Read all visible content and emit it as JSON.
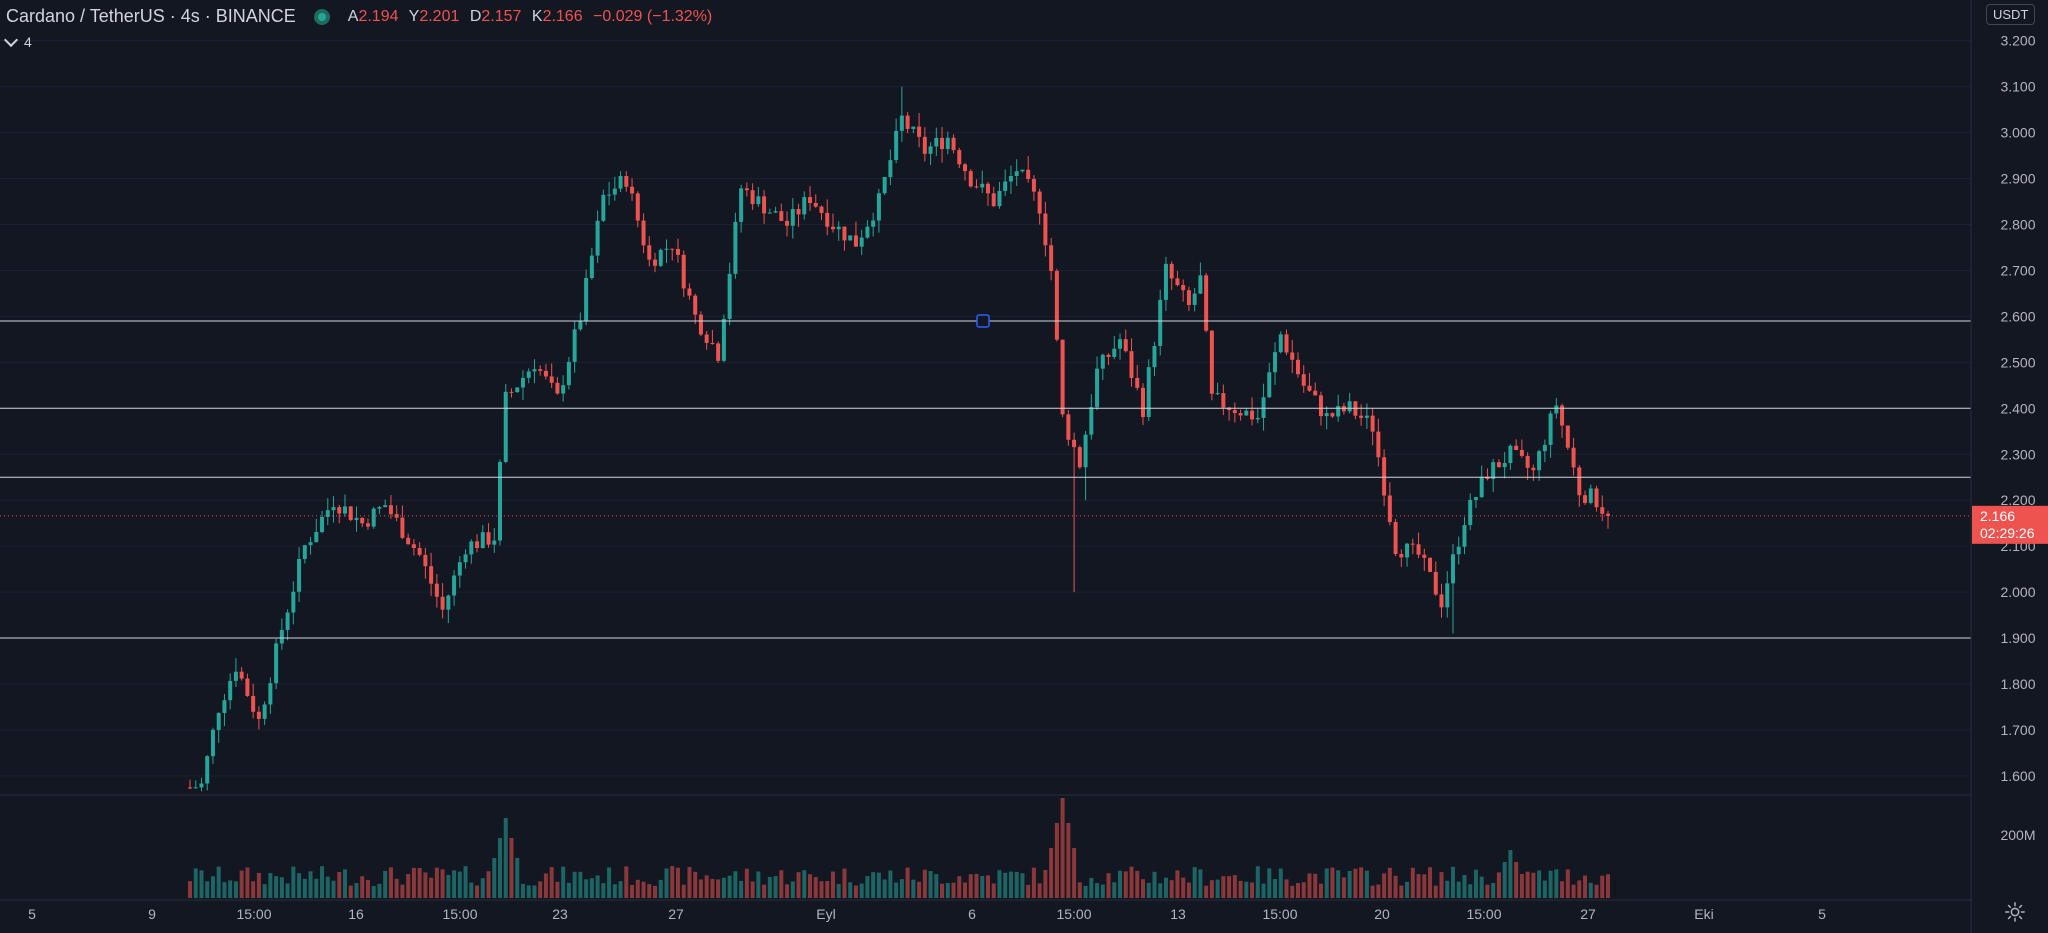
{
  "header": {
    "title": "Cardano / TetherUS · 4s · BINANCE",
    "ohlc": [
      {
        "key": "A",
        "val": "2.194"
      },
      {
        "key": "Y",
        "val": "2.201"
      },
      {
        "key": "D",
        "val": "2.157"
      },
      {
        "key": "K",
        "val": "2.166"
      }
    ],
    "change": "−0.029 (−1.32%)"
  },
  "volume_indicator_label": "4",
  "currency_button": "USDT",
  "colors": {
    "background": "#131722",
    "up": "#26a69a",
    "down": "#ef5350",
    "axis_text": "#b2b5be",
    "hline": "#d1d4dc"
  },
  "icons": [
    "status-dot-icon",
    "chevron-down-icon",
    "gear-icon"
  ],
  "chart_data": {
    "type": "candlestick",
    "title": "Cardano / TetherUS",
    "interval": "4s",
    "exchange": "BINANCE",
    "y_ticks": [
      "3.200",
      "3.100",
      "3.000",
      "2.900",
      "2.800",
      "2.700",
      "2.600",
      "2.500",
      "2.400",
      "2.300",
      "2.200",
      "2.100",
      "2.000",
      "1.900",
      "1.800",
      "1.700",
      "1.600"
    ],
    "ylim": [
      1.565,
      3.245
    ],
    "x_ticks": [
      "5",
      "9",
      "15:00",
      "16",
      "15:00",
      "23",
      "27",
      "Eyl",
      "6",
      "15:00",
      "13",
      "15:00",
      "20",
      "15:00",
      "27",
      "Eki",
      "5"
    ],
    "volume_tick": "200M",
    "horizontal_lines": [
      {
        "value": 2.59,
        "label": "2.590"
      },
      {
        "value": 2.4,
        "label": "2.400"
      },
      {
        "value": 2.25,
        "label": "2.250"
      },
      {
        "value": 1.9,
        "label": "1.900"
      }
    ],
    "last_price": {
      "value": 2.166,
      "label": "2.166",
      "countdown": "02:29:26"
    },
    "approx_close_path": [
      {
        "t": 0,
        "c": 1.575
      },
      {
        "t": 2,
        "c": 1.58
      },
      {
        "t": 5,
        "c": 1.75
      },
      {
        "t": 8,
        "c": 1.84
      },
      {
        "t": 12,
        "c": 1.72
      },
      {
        "t": 16,
        "c": 1.92
      },
      {
        "t": 20,
        "c": 2.1
      },
      {
        "t": 25,
        "c": 2.2
      },
      {
        "t": 30,
        "c": 2.15
      },
      {
        "t": 34,
        "c": 2.19
      },
      {
        "t": 40,
        "c": 2.08
      },
      {
        "t": 44,
        "c": 1.96
      },
      {
        "t": 48,
        "c": 2.1
      },
      {
        "t": 53,
        "c": 2.12
      },
      {
        "t": 55,
        "c": 2.42
      },
      {
        "t": 60,
        "c": 2.5
      },
      {
        "t": 64,
        "c": 2.42
      },
      {
        "t": 68,
        "c": 2.6
      },
      {
        "t": 72,
        "c": 2.86
      },
      {
        "t": 76,
        "c": 2.9
      },
      {
        "t": 80,
        "c": 2.72
      },
      {
        "t": 84,
        "c": 2.76
      },
      {
        "t": 88,
        "c": 2.6
      },
      {
        "t": 92,
        "c": 2.52
      },
      {
        "t": 96,
        "c": 2.88
      },
      {
        "t": 100,
        "c": 2.84
      },
      {
        "t": 104,
        "c": 2.8
      },
      {
        "t": 108,
        "c": 2.86
      },
      {
        "t": 112,
        "c": 2.8
      },
      {
        "t": 116,
        "c": 2.76
      },
      {
        "t": 120,
        "c": 2.85
      },
      {
        "t": 124,
        "c": 3.03
      },
      {
        "t": 128,
        "c": 2.96
      },
      {
        "t": 132,
        "c": 2.99
      },
      {
        "t": 136,
        "c": 2.9
      },
      {
        "t": 140,
        "c": 2.85
      },
      {
        "t": 144,
        "c": 2.92
      },
      {
        "t": 148,
        "c": 2.84
      },
      {
        "t": 150,
        "c": 2.7
      },
      {
        "t": 152,
        "c": 2.38
      },
      {
        "t": 155,
        "c": 2.28
      },
      {
        "t": 158,
        "c": 2.48
      },
      {
        "t": 162,
        "c": 2.55
      },
      {
        "t": 166,
        "c": 2.4
      },
      {
        "t": 170,
        "c": 2.7
      },
      {
        "t": 174,
        "c": 2.62
      },
      {
        "t": 176,
        "c": 2.68
      },
      {
        "t": 178,
        "c": 2.42
      },
      {
        "t": 182,
        "c": 2.4
      },
      {
        "t": 186,
        "c": 2.38
      },
      {
        "t": 190,
        "c": 2.56
      },
      {
        "t": 194,
        "c": 2.45
      },
      {
        "t": 198,
        "c": 2.38
      },
      {
        "t": 202,
        "c": 2.4
      },
      {
        "t": 206,
        "c": 2.36
      },
      {
        "t": 210,
        "c": 2.1
      },
      {
        "t": 214,
        "c": 2.08
      },
      {
        "t": 218,
        "c": 1.98
      },
      {
        "t": 222,
        "c": 2.16
      },
      {
        "t": 226,
        "c": 2.26
      },
      {
        "t": 230,
        "c": 2.3
      },
      {
        "t": 234,
        "c": 2.26
      },
      {
        "t": 238,
        "c": 2.41
      },
      {
        "t": 242,
        "c": 2.22
      },
      {
        "t": 245,
        "c": 2.2
      },
      {
        "t": 247,
        "c": 2.166
      }
    ],
    "volume_spikes": [
      {
        "t": 55,
        "v": 1.0
      },
      {
        "t": 152,
        "v": 1.25
      },
      {
        "t": 230,
        "v": 0.6
      }
    ]
  }
}
